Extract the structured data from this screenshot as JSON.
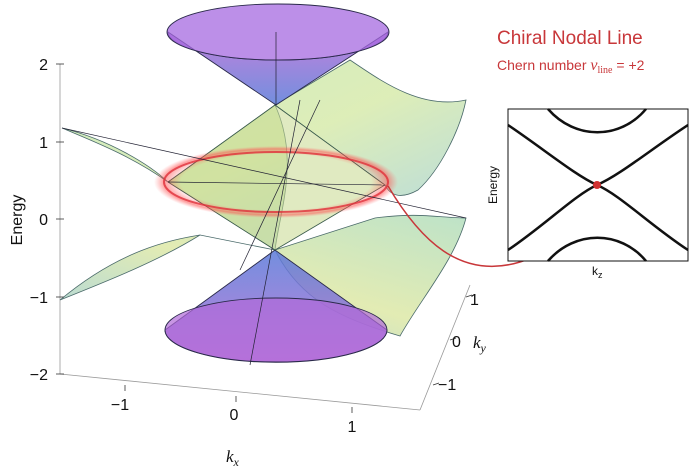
{
  "main_plot": {
    "y_axis_label": "Energy",
    "y_ticks": [
      "2",
      "1",
      "0",
      "−1",
      "−2"
    ],
    "x_axis_label": "k",
    "x_axis_sub": "x",
    "x_ticks": [
      "−1",
      "0",
      "1"
    ],
    "ky_axis_label": "k",
    "ky_axis_sub": "y",
    "ky_ticks": [
      "1",
      "0",
      "−1"
    ],
    "nodal_ring_color": "#e0303a",
    "cone_color": "#8a6fe0",
    "surface_color": "#9ed0b0"
  },
  "annotation": {
    "title": "Chiral Nodal Line",
    "subtitle_prefix": "Chern number ",
    "nu_symbol": "ν",
    "nu_sub": "line",
    "subtitle_suffix": " = +2",
    "color": "#c8373a"
  },
  "inset": {
    "y_label": "Energy",
    "x_label": "k",
    "x_sub": "z",
    "crossing_color": "#d03030"
  }
}
